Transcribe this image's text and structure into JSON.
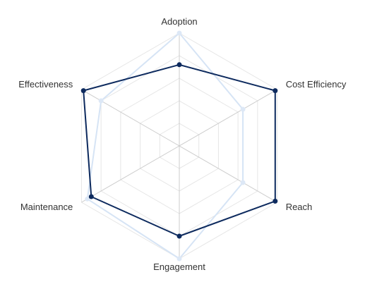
{
  "chart_data": {
    "type": "radar",
    "title": "",
    "axes": [
      "Adoption",
      "Cost Efficiency",
      "Reach",
      "Engagement",
      "Maintenance",
      "Effectiveness"
    ],
    "rlim": [
      0,
      100
    ],
    "grid": true,
    "grid_levels": 5,
    "legend": "none",
    "series": [
      {
        "values": [
          72,
          98,
          98,
          80,
          90,
          98
        ],
        "color": "#0d2a5e",
        "marker_color": "#0d2a5e"
      },
      {
        "values": [
          100,
          65,
          65,
          100,
          94,
          80
        ],
        "color": "#d6e4f5",
        "marker_color": "#dde8f6"
      }
    ]
  }
}
